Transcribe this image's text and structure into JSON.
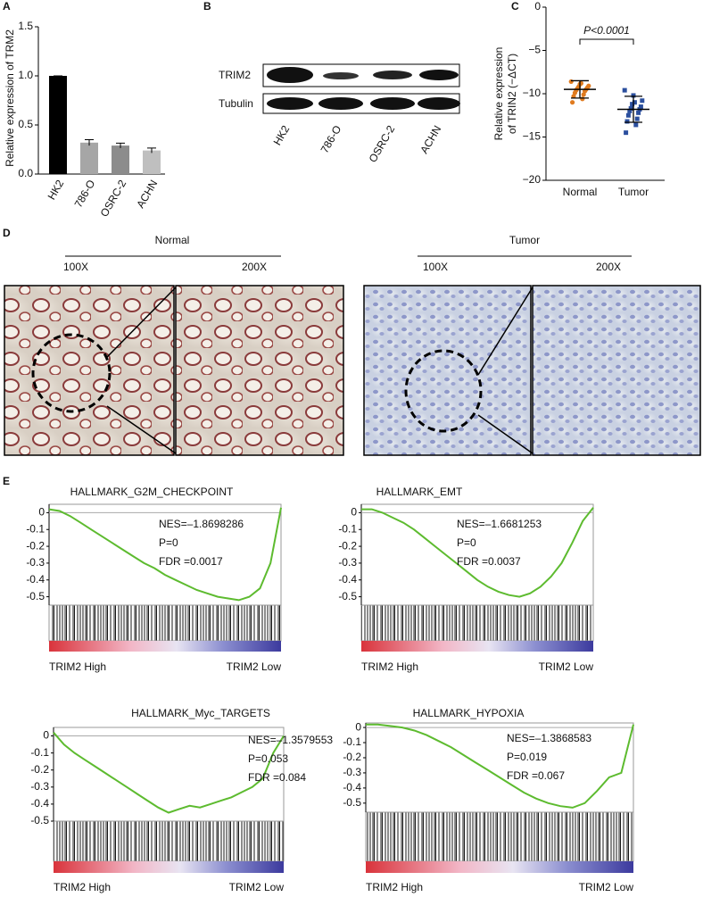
{
  "panel_labels": [
    "A",
    "B",
    "C",
    "D",
    "E"
  ],
  "blot": {
    "rows": [
      "TRIM2",
      "Tubulin"
    ],
    "lanes": [
      "HK2",
      "786-O",
      "OSRC-2",
      "ACHN"
    ]
  },
  "ihc": {
    "groups": [
      "Normal",
      "Tumor"
    ],
    "magnifications": [
      [
        "100X",
        "200X"
      ],
      [
        "100X",
        "200X"
      ]
    ]
  },
  "chart_data": [
    {
      "type": "bar",
      "y_label": "Relative expression of TRM2",
      "categories": [
        "HK2",
        "786-O",
        "OSRC-2",
        "ACHN"
      ],
      "values": [
        1.0,
        0.32,
        0.29,
        0.24
      ],
      "errors": [
        0.0,
        0.03,
        0.025,
        0.025
      ],
      "colors": [
        "#000000",
        "#a6a6a6",
        "#8c8c8c",
        "#bfbfbf"
      ],
      "ylim": [
        0,
        1.5
      ],
      "yticks": [
        {
          "value": 0,
          "label": "0.0"
        },
        {
          "value": 0.5,
          "label": "0.5"
        },
        {
          "value": 1,
          "label": "1.0"
        },
        {
          "value": 1.5,
          "label": "1.5"
        }
      ]
    },
    {
      "type": "scatter",
      "y_label": [
        "Relative expression",
        "of TRIN2 (−ΔCT)"
      ],
      "annotation": "P<0.0001",
      "categories": [
        "Normal",
        "Tumor"
      ],
      "series": [
        {
          "name": "Normal",
          "color": "#e07b1f",
          "values": [
            -8.6,
            -8.9,
            -9.1,
            -9.2,
            -9.3,
            -9.4,
            -9.5,
            -9.6,
            -9.7,
            -9.9,
            -10.1,
            -10.3,
            -10.6,
            -11.0,
            -8.8
          ],
          "mean": -9.5,
          "sd": 1.0
        },
        {
          "name": "Tumor",
          "color": "#2b4f9e",
          "values": [
            -9.6,
            -10.2,
            -10.8,
            -11.2,
            -11.5,
            -11.7,
            -11.8,
            -12.0,
            -12.2,
            -12.5,
            -12.9,
            -13.2,
            -13.6,
            -14.5,
            -11.0
          ],
          "mean": -11.8,
          "sd": 1.5
        }
      ],
      "ylim": [
        -20,
        0
      ],
      "yticks": [
        {
          "value": 0,
          "label": "0"
        },
        {
          "value": -5,
          "label": "−5"
        },
        {
          "value": -10,
          "label": "−10"
        },
        {
          "value": -15,
          "label": "−15"
        },
        {
          "value": -20,
          "label": "−20"
        }
      ]
    },
    {
      "type": "gsea",
      "title": "HALLMARK_G2M_CHECKPOINT",
      "annotations": [
        "NES=–1.8698286",
        "P=0",
        "FDR =0.0017"
      ],
      "left_label": "TRIM2 High",
      "right_label": "TRIM2 Low",
      "color": "#5dbb2f",
      "values": [
        0.02,
        0.01,
        -0.02,
        -0.06,
        -0.1,
        -0.14,
        -0.18,
        -0.22,
        -0.26,
        -0.3,
        -0.33,
        -0.37,
        -0.4,
        -0.43,
        -0.46,
        -0.48,
        -0.5,
        -0.51,
        -0.52,
        -0.5,
        -0.45,
        -0.3,
        0.03
      ],
      "ylim": [
        -0.55,
        0.05
      ],
      "yticks": [
        0,
        -0.1,
        -0.2,
        -0.3,
        -0.4,
        -0.5
      ]
    },
    {
      "type": "gsea",
      "title": "HALLMARK_EMT",
      "annotations": [
        "NES=–1.6681253",
        "P=0",
        "FDR =0.0037"
      ],
      "left_label": "TRIM2 High",
      "right_label": "TRIM2 Low",
      "color": "#5dbb2f",
      "values": [
        0.02,
        0.02,
        0.0,
        -0.03,
        -0.06,
        -0.1,
        -0.15,
        -0.2,
        -0.25,
        -0.3,
        -0.35,
        -0.4,
        -0.44,
        -0.47,
        -0.49,
        -0.5,
        -0.48,
        -0.44,
        -0.38,
        -0.3,
        -0.18,
        -0.05,
        0.03
      ],
      "ylim": [
        -0.55,
        0.05
      ],
      "yticks": [
        0,
        -0.1,
        -0.2,
        -0.3,
        -0.4,
        -0.5
      ]
    },
    {
      "type": "gsea",
      "title": "HALLMARK_Myc_TARGETS",
      "annotations": [
        "NES=–1.3579553",
        "P=0.053",
        "FDR =0.084"
      ],
      "left_label": "TRIM2 High",
      "right_label": "TRIM2 Low",
      "color": "#5dbb2f",
      "values": [
        0.02,
        -0.05,
        -0.1,
        -0.14,
        -0.18,
        -0.22,
        -0.26,
        -0.3,
        -0.34,
        -0.38,
        -0.42,
        -0.45,
        -0.43,
        -0.41,
        -0.42,
        -0.4,
        -0.38,
        -0.36,
        -0.33,
        -0.3,
        -0.25,
        -0.1,
        0.0
      ],
      "ylim": [
        -0.5,
        0.05
      ],
      "yticks": [
        0,
        -0.1,
        -0.2,
        -0.3,
        -0.4,
        -0.5
      ]
    },
    {
      "type": "gsea",
      "title": "HALLMARK_HYPOXIA",
      "annotations": [
        "NES=–1.3868583",
        "P=0.019",
        "FDR =0.067"
      ],
      "left_label": "TRIM2 High",
      "right_label": "TRIM2 Low",
      "color": "#5dbb2f",
      "values": [
        0.02,
        0.02,
        0.01,
        0.0,
        -0.02,
        -0.05,
        -0.09,
        -0.13,
        -0.18,
        -0.23,
        -0.28,
        -0.33,
        -0.38,
        -0.43,
        -0.47,
        -0.5,
        -0.52,
        -0.53,
        -0.5,
        -0.42,
        -0.33,
        -0.3,
        0.02
      ],
      "ylim": [
        -0.56,
        0.03
      ],
      "yticks": [
        0,
        -0.1,
        -0.2,
        -0.3,
        -0.4,
        -0.5
      ]
    }
  ]
}
